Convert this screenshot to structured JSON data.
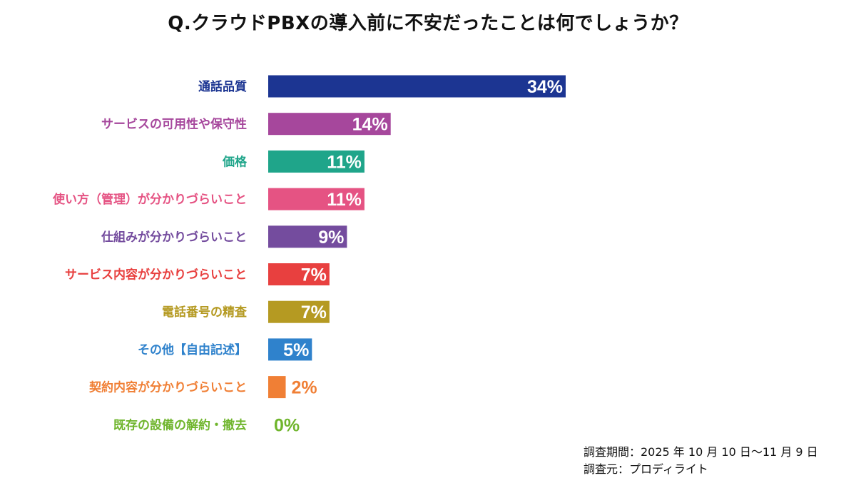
{
  "title": "Q.クラウドPBXの導入前に不安だったことは何でしょうか？",
  "chart_data": {
    "type": "bar",
    "orientation": "horizontal",
    "categories": [
      "通話品質",
      "サービスの可用性や保守性",
      "価格",
      "使い方（管理）が分かりづらいこと",
      "仕組みが分かりづらいこと",
      "サービス内容が分かりづらいこと",
      "電話番号の精査",
      "その他【自由記述】",
      "契約内容が分かりづらいこと",
      "既存の設備の解約・撤去"
    ],
    "values": [
      34,
      14,
      11,
      11,
      9,
      7,
      7,
      5,
      2,
      0
    ],
    "value_labels": [
      "34%",
      "14%",
      "11%",
      "11%",
      "9%",
      "7%",
      "7%",
      "5%",
      "2%",
      "0%"
    ],
    "colors": [
      "#1c3592",
      "#a6479c",
      "#1fa58a",
      "#e55383",
      "#744c9e",
      "#e8403f",
      "#b59a22",
      "#2f82cc",
      "#f07f35",
      "#6fb52c"
    ],
    "xlim": [
      0,
      34
    ]
  },
  "footnote": {
    "period": "調査期間：2025 年 10 月 10 日〜11 月 9 日",
    "source": "調査元：プロディライト"
  }
}
